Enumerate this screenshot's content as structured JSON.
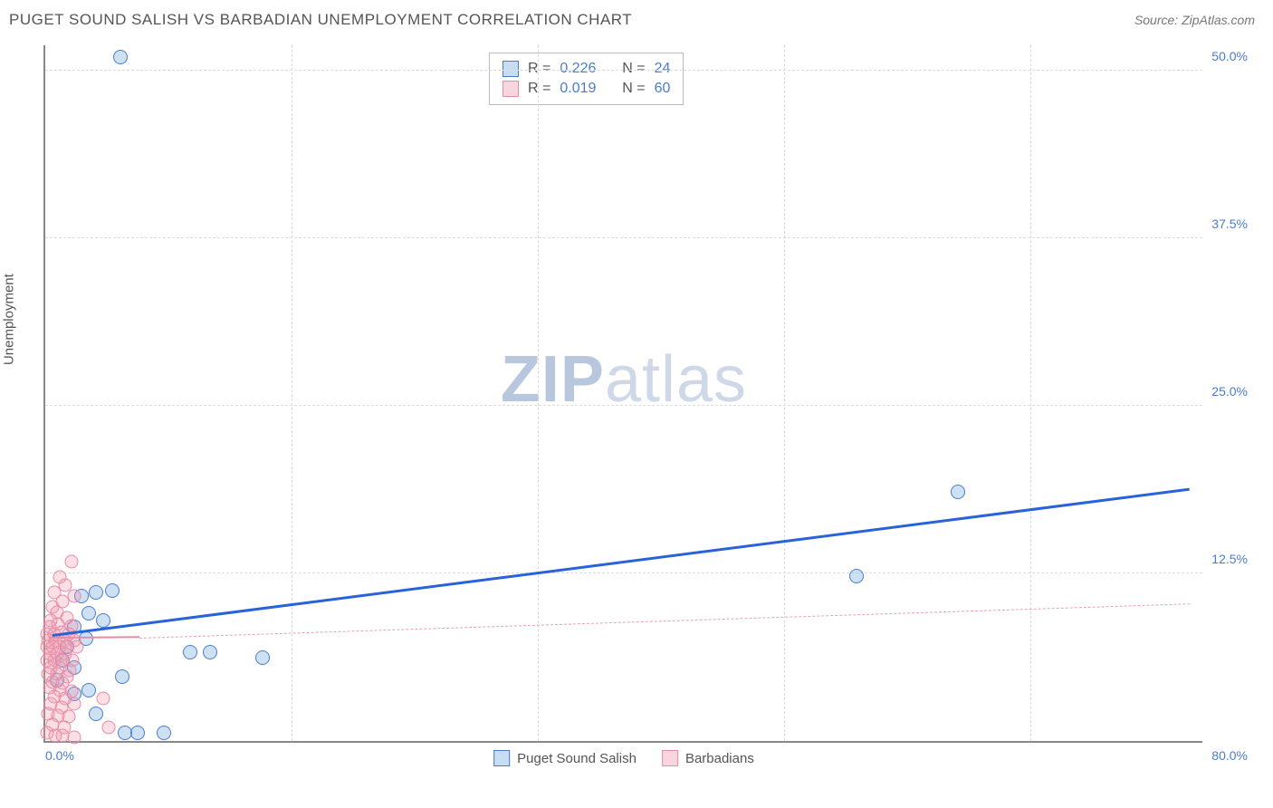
{
  "header": {
    "title": "PUGET SOUND SALISH VS BARBADIAN UNEMPLOYMENT CORRELATION CHART",
    "source": "Source: ZipAtlas.com"
  },
  "chart": {
    "type": "scatter",
    "ylabel": "Unemployment",
    "watermark_zip": "ZIP",
    "watermark_rest": "atlas",
    "xlim": [
      0,
      80
    ],
    "ylim": [
      0,
      52
    ],
    "background_color": "#ffffff",
    "grid_color": "#dddddd",
    "axis_color": "#888888",
    "yticks": [
      {
        "v": 12.5,
        "label": "12.5%"
      },
      {
        "v": 25.0,
        "label": "25.0%"
      },
      {
        "v": 37.5,
        "label": "37.5%"
      },
      {
        "v": 50.0,
        "label": "50.0%"
      }
    ],
    "xticks_grid": [
      17,
      34,
      51,
      68
    ],
    "xticks_labels": [
      {
        "v": 0,
        "label": "0.0%",
        "cls": "left"
      },
      {
        "v": 80,
        "label": "80.0%",
        "cls": "right"
      }
    ],
    "tick_label_color": "#4a7bd0",
    "tick_label_fontsize": 14,
    "series": [
      {
        "name": "Puget Sound Salish",
        "color_fill": "rgba(116,169,222,0.35)",
        "color_stroke": "#4a7bd0",
        "marker_size": 16,
        "cls": "blue",
        "R": "0.226",
        "N": "24",
        "trend": {
          "x1": 0.5,
          "y1": 7.8,
          "x2": 79,
          "y2": 18.7,
          "cls": "blue",
          "width": 3
        },
        "points": [
          [
            5.2,
            51.0
          ],
          [
            56.0,
            12.3
          ],
          [
            63.0,
            18.6
          ],
          [
            2.5,
            10.8
          ],
          [
            3.0,
            9.5
          ],
          [
            3.5,
            11.1
          ],
          [
            4.6,
            11.2
          ],
          [
            2.0,
            8.5
          ],
          [
            4.0,
            9.0
          ],
          [
            2.8,
            7.6
          ],
          [
            1.5,
            7.0
          ],
          [
            10.0,
            6.6
          ],
          [
            11.4,
            6.6
          ],
          [
            15.0,
            6.2
          ],
          [
            5.3,
            4.8
          ],
          [
            0.8,
            4.5
          ],
          [
            2.0,
            3.5
          ],
          [
            3.0,
            3.8
          ],
          [
            3.5,
            2.0
          ],
          [
            5.5,
            0.6
          ],
          [
            6.4,
            0.6
          ],
          [
            8.2,
            0.6
          ],
          [
            2.0,
            5.5
          ],
          [
            1.2,
            6.0
          ]
        ]
      },
      {
        "name": "Barbadians",
        "color_fill": "rgba(240,150,170,0.3)",
        "color_stroke": "#e88ba5",
        "marker_size": 15,
        "cls": "pink",
        "R": "0.019",
        "N": "60",
        "trend_solid": {
          "x1": 0.3,
          "y1": 7.6,
          "x2": 6.5,
          "y2": 7.65,
          "cls": "pink-solid"
        },
        "trend_dash": {
          "x1": 6.5,
          "y1": 7.65,
          "x2": 79,
          "y2": 10.2,
          "cls": "pink-dash"
        },
        "points": [
          [
            1.8,
            13.4
          ],
          [
            1.0,
            12.2
          ],
          [
            0.6,
            11.1
          ],
          [
            1.4,
            11.6
          ],
          [
            0.5,
            10.0
          ],
          [
            1.2,
            10.4
          ],
          [
            2.0,
            10.8
          ],
          [
            0.8,
            9.6
          ],
          [
            0.4,
            9.0
          ],
          [
            1.5,
            9.2
          ],
          [
            0.3,
            8.5
          ],
          [
            0.9,
            8.7
          ],
          [
            1.8,
            8.6
          ],
          [
            0.15,
            8.0
          ],
          [
            0.6,
            8.0
          ],
          [
            1.1,
            8.1
          ],
          [
            1.6,
            8.0
          ],
          [
            0.2,
            7.5
          ],
          [
            0.7,
            7.5
          ],
          [
            1.3,
            7.5
          ],
          [
            2.0,
            7.5
          ],
          [
            0.1,
            7.0
          ],
          [
            0.5,
            7.0
          ],
          [
            1.0,
            7.0
          ],
          [
            1.5,
            7.0
          ],
          [
            2.2,
            7.0
          ],
          [
            0.3,
            6.5
          ],
          [
            0.8,
            6.5
          ],
          [
            1.4,
            6.5
          ],
          [
            0.1,
            6.0
          ],
          [
            0.6,
            6.0
          ],
          [
            1.2,
            6.0
          ],
          [
            1.9,
            6.0
          ],
          [
            0.4,
            5.5
          ],
          [
            1.0,
            5.5
          ],
          [
            1.7,
            5.3
          ],
          [
            0.2,
            5.0
          ],
          [
            0.8,
            5.0
          ],
          [
            1.5,
            4.8
          ],
          [
            0.5,
            4.4
          ],
          [
            1.2,
            4.3
          ],
          [
            0.3,
            4.0
          ],
          [
            1.0,
            3.8
          ],
          [
            1.8,
            3.7
          ],
          [
            0.6,
            3.3
          ],
          [
            1.4,
            3.2
          ],
          [
            4.0,
            3.2
          ],
          [
            0.4,
            2.8
          ],
          [
            1.1,
            2.5
          ],
          [
            2.0,
            2.8
          ],
          [
            0.2,
            2.0
          ],
          [
            0.9,
            1.9
          ],
          [
            1.6,
            1.8
          ],
          [
            0.5,
            1.2
          ],
          [
            1.3,
            1.0
          ],
          [
            4.4,
            1.0
          ],
          [
            0.15,
            0.6
          ],
          [
            0.7,
            0.4
          ],
          [
            1.2,
            0.4
          ],
          [
            2.0,
            0.3
          ]
        ]
      }
    ],
    "legend_bottom": [
      {
        "cls": "blue",
        "label": "Puget Sound Salish"
      },
      {
        "cls": "pink",
        "label": "Barbadians"
      }
    ],
    "statbox": {
      "r_label": "R =",
      "n_label": "N ="
    }
  }
}
